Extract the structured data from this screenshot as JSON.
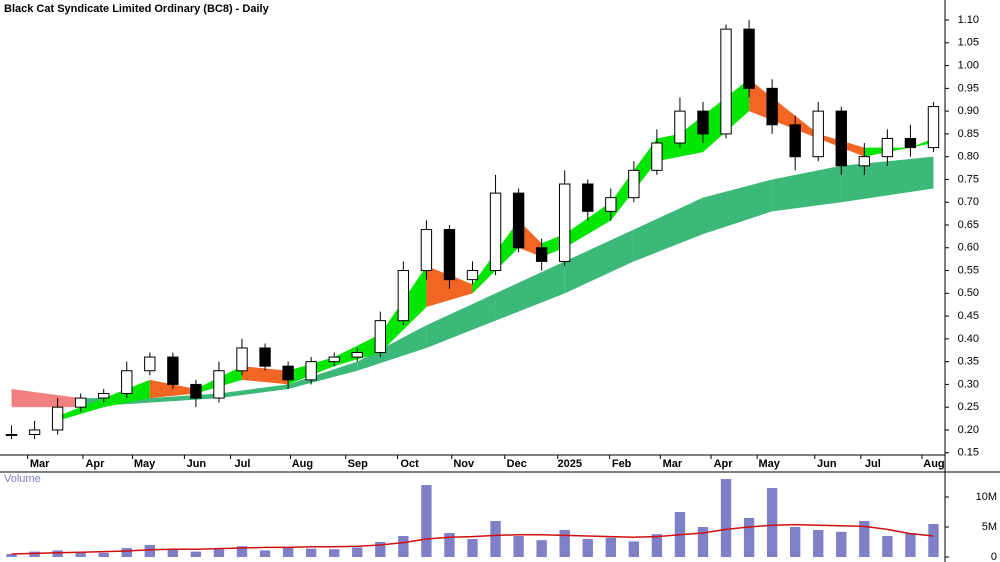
{
  "chart_data": {
    "type": "candlestick",
    "title": "Black Cat Syndicate Limited Ordinary (BC8) - Daily",
    "volume_label": "Volume",
    "x": [
      0,
      2,
      4,
      6,
      8,
      10,
      12,
      14,
      16,
      18,
      20,
      22,
      24,
      26,
      28,
      30,
      32,
      34,
      36,
      38,
      40,
      42,
      44,
      46,
      48,
      50,
      52,
      54,
      56,
      58,
      60,
      62,
      64,
      66,
      68,
      70,
      72,
      74,
      76,
      78,
      80
    ],
    "open": [
      0.19,
      0.19,
      0.2,
      0.25,
      0.27,
      0.28,
      0.33,
      0.36,
      0.3,
      0.27,
      0.33,
      0.38,
      0.34,
      0.31,
      0.35,
      0.36,
      0.37,
      0.44,
      0.55,
      0.64,
      0.53,
      0.55,
      0.72,
      0.6,
      0.57,
      0.74,
      0.68,
      0.71,
      0.77,
      0.83,
      0.9,
      0.85,
      1.08,
      0.95,
      0.87,
      0.8,
      0.9,
      0.78,
      0.8,
      0.84,
      0.82
    ],
    "high": [
      0.21,
      0.22,
      0.27,
      0.28,
      0.29,
      0.35,
      0.37,
      0.37,
      0.31,
      0.35,
      0.4,
      0.39,
      0.35,
      0.36,
      0.37,
      0.38,
      0.46,
      0.57,
      0.66,
      0.65,
      0.57,
      0.76,
      0.73,
      0.62,
      0.77,
      0.75,
      0.73,
      0.79,
      0.86,
      0.93,
      0.92,
      1.09,
      1.1,
      0.97,
      0.89,
      0.92,
      0.91,
      0.83,
      0.86,
      0.87,
      0.92
    ],
    "low": [
      0.18,
      0.18,
      0.19,
      0.24,
      0.26,
      0.27,
      0.32,
      0.29,
      0.25,
      0.26,
      0.32,
      0.33,
      0.29,
      0.3,
      0.34,
      0.35,
      0.36,
      0.43,
      0.53,
      0.51,
      0.52,
      0.54,
      0.59,
      0.55,
      0.56,
      0.66,
      0.66,
      0.7,
      0.76,
      0.82,
      0.83,
      0.84,
      0.93,
      0.85,
      0.77,
      0.79,
      0.76,
      0.76,
      0.78,
      0.8,
      0.81
    ],
    "close": [
      0.19,
      0.2,
      0.25,
      0.27,
      0.28,
      0.33,
      0.36,
      0.3,
      0.27,
      0.33,
      0.38,
      0.34,
      0.31,
      0.35,
      0.36,
      0.37,
      0.44,
      0.55,
      0.64,
      0.53,
      0.55,
      0.72,
      0.6,
      0.57,
      0.74,
      0.68,
      0.71,
      0.77,
      0.83,
      0.9,
      0.85,
      1.08,
      0.95,
      0.87,
      0.8,
      0.9,
      0.78,
      0.8,
      0.84,
      0.82,
      0.91
    ],
    "volume": [
      500000,
      900000,
      1100000,
      800000,
      700000,
      1500000,
      2000000,
      1200000,
      900000,
      1300000,
      1800000,
      1100000,
      1500000,
      1400000,
      1300000,
      1600000,
      2500000,
      3500000,
      12000000,
      4000000,
      3000000,
      6000000,
      3500000,
      2800000,
      4500000,
      3000000,
      3200000,
      2600000,
      3800000,
      7500000,
      5000000,
      13000000,
      6500000,
      11500000,
      5000000,
      4500000,
      4200000,
      6000000,
      3500000,
      4000000,
      5500000
    ],
    "volume_ma": [
      500000,
      600000,
      700000,
      800000,
      900000,
      1000000,
      1200000,
      1300000,
      1300000,
      1400000,
      1500000,
      1600000,
      1600000,
      1700000,
      1700000,
      1800000,
      2000000,
      2400000,
      3000000,
      3300000,
      3400000,
      3600000,
      3700000,
      3700000,
      3600000,
      3500000,
      3400000,
      3300000,
      3400000,
      3700000,
      4000000,
      4600000,
      5000000,
      5300000,
      5400000,
      5300000,
      5200000,
      5100000,
      4600000,
      3900000,
      3500000
    ],
    "short_ribbon": {
      "x": [
        4,
        8,
        12,
        16,
        20,
        24,
        28,
        32,
        36,
        40,
        44,
        46,
        48,
        52,
        56,
        58,
        60,
        64,
        66,
        70,
        74,
        78,
        80
      ],
      "top": [
        0.23,
        0.27,
        0.31,
        0.29,
        0.34,
        0.33,
        0.36,
        0.41,
        0.56,
        0.52,
        0.66,
        0.61,
        0.63,
        0.7,
        0.84,
        0.85,
        0.89,
        0.97,
        0.93,
        0.85,
        0.82,
        0.82,
        0.84
      ],
      "bottom": [
        0.22,
        0.25,
        0.27,
        0.28,
        0.31,
        0.3,
        0.34,
        0.37,
        0.47,
        0.5,
        0.6,
        0.58,
        0.6,
        0.66,
        0.79,
        0.8,
        0.81,
        0.9,
        0.88,
        0.84,
        0.8,
        0.82,
        0.83
      ],
      "color_up": "#00e600",
      "color_down": "#f26522"
    },
    "long_ribbon": {
      "x": [
        0,
        6,
        12,
        18,
        24,
        30,
        36,
        42,
        48,
        54,
        60,
        66,
        72,
        80
      ],
      "top": [
        0.29,
        0.27,
        0.27,
        0.28,
        0.3,
        0.35,
        0.43,
        0.5,
        0.57,
        0.64,
        0.71,
        0.75,
        0.78,
        0.8
      ],
      "bottom": [
        0.25,
        0.25,
        0.26,
        0.27,
        0.29,
        0.33,
        0.38,
        0.44,
        0.5,
        0.57,
        0.63,
        0.68,
        0.7,
        0.73
      ],
      "color": "#3cb878",
      "color_early": "#f28080"
    },
    "xlim": [
      -1,
      81
    ],
    "xticks": [
      {
        "value": 1.4,
        "label": "Mar"
      },
      {
        "value": 6.2,
        "label": "Apr"
      },
      {
        "value": 10.5,
        "label": "May"
      },
      {
        "value": 15,
        "label": "Jun"
      },
      {
        "value": 19,
        "label": "Jul"
      },
      {
        "value": 24.2,
        "label": "Aug"
      },
      {
        "value": 29,
        "label": "Sep"
      },
      {
        "value": 33.5,
        "label": "Oct"
      },
      {
        "value": 38.2,
        "label": "Nov"
      },
      {
        "value": 42.8,
        "label": "Dec"
      },
      {
        "value": 47.4,
        "label": "2025"
      },
      {
        "value": 51.9,
        "label": "Feb"
      },
      {
        "value": 56.3,
        "label": "Mar"
      },
      {
        "value": 60.7,
        "label": "Apr"
      },
      {
        "value": 64.7,
        "label": "May"
      },
      {
        "value": 69.7,
        "label": "Jun"
      },
      {
        "value": 73.7,
        "label": "Jul"
      },
      {
        "value": 79,
        "label": "Aug"
      }
    ],
    "ylim": [
      0.145,
      1.144
    ],
    "yticks": [
      {
        "value": 1.1,
        "label": "1.10"
      },
      1.05,
      {
        "value": 1.0,
        "label": "1.00"
      },
      0.95,
      {
        "value": 0.9,
        "label": "0.90"
      },
      0.85,
      {
        "value": 0.8,
        "label": "0.80"
      },
      0.75,
      {
        "value": 0.7,
        "label": "0.70"
      },
      0.65,
      {
        "value": 0.6,
        "label": "0.60"
      },
      0.55,
      {
        "value": 0.5,
        "label": "0.50"
      },
      0.45,
      {
        "value": 0.4,
        "label": "0.40"
      },
      0.35,
      {
        "value": 0.3,
        "label": "0.30"
      },
      0.25,
      {
        "value": 0.2,
        "label": "0.20"
      },
      0.15
    ],
    "vlim": [
      0,
      13500000
    ],
    "vticks": [
      0,
      {
        "value": 5000000,
        "label": "5M"
      },
      {
        "value": 10000000,
        "label": "10M"
      }
    ],
    "volume_color": "#8080c8",
    "volume_ma_color": "#d01010"
  }
}
